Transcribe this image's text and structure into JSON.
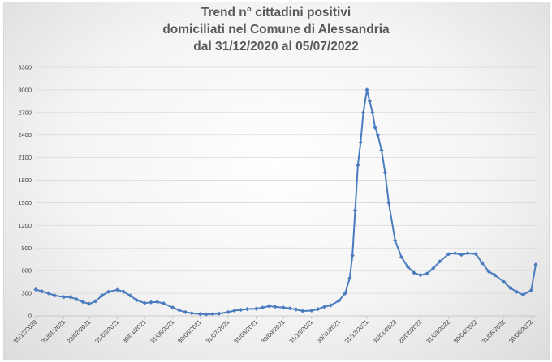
{
  "chart_data": {
    "type": "line",
    "title": [
      "Trend n° cittadini positivi",
      "domiciliati nel Comune di Alessandria",
      "dal 31/12/2020 al 05/07/2022"
    ],
    "xlabel": "",
    "ylabel": "",
    "ylim": [
      0,
      3300
    ],
    "yticks": [
      0,
      300,
      600,
      900,
      1200,
      1500,
      1800,
      2100,
      2400,
      2700,
      3000,
      3300
    ],
    "x_start": "31/12/2020",
    "x_end": "05/07/2022",
    "xtick_labels": [
      "31/12/2020",
      "31/01/2021",
      "28/02/2021",
      "31/03/2021",
      "30/04/2021",
      "31/05/2021",
      "30/06/2021",
      "31/07/2021",
      "31/08/2021",
      "30/09/2021",
      "31/10/2021",
      "30/11/2021",
      "31/12/2021",
      "31/01/2022",
      "28/02/2022",
      "31/03/2022",
      "30/04/2022",
      "31/05/2022",
      "30/06/2022"
    ],
    "grid": true,
    "legend": "none",
    "color": "#4a7cbf",
    "marker": "diamond",
    "series": [
      {
        "points": [
          [
            "31/12/2020",
            350
          ],
          [
            "07/01/2021",
            325
          ],
          [
            "14/01/2021",
            300
          ],
          [
            "21/01/2021",
            270
          ],
          [
            "31/01/2021",
            250
          ],
          [
            "07/02/2021",
            250
          ],
          [
            "14/02/2021",
            220
          ],
          [
            "21/02/2021",
            185
          ],
          [
            "28/02/2021",
            160
          ],
          [
            "07/03/2021",
            195
          ],
          [
            "14/03/2021",
            270
          ],
          [
            "21/03/2021",
            320
          ],
          [
            "31/03/2021",
            345
          ],
          [
            "07/04/2021",
            320
          ],
          [
            "14/04/2021",
            270
          ],
          [
            "21/04/2021",
            210
          ],
          [
            "30/04/2021",
            170
          ],
          [
            "07/05/2021",
            180
          ],
          [
            "14/05/2021",
            185
          ],
          [
            "21/05/2021",
            165
          ],
          [
            "31/05/2021",
            110
          ],
          [
            "07/06/2021",
            75
          ],
          [
            "14/06/2021",
            50
          ],
          [
            "21/06/2021",
            35
          ],
          [
            "30/06/2021",
            25
          ],
          [
            "07/07/2021",
            20
          ],
          [
            "14/07/2021",
            25
          ],
          [
            "21/07/2021",
            30
          ],
          [
            "31/07/2021",
            50
          ],
          [
            "07/08/2021",
            70
          ],
          [
            "14/08/2021",
            80
          ],
          [
            "21/08/2021",
            90
          ],
          [
            "31/08/2021",
            95
          ],
          [
            "07/09/2021",
            110
          ],
          [
            "14/09/2021",
            130
          ],
          [
            "21/09/2021",
            120
          ],
          [
            "30/09/2021",
            110
          ],
          [
            "07/10/2021",
            100
          ],
          [
            "14/10/2021",
            85
          ],
          [
            "21/10/2021",
            65
          ],
          [
            "31/10/2021",
            70
          ],
          [
            "07/11/2021",
            90
          ],
          [
            "14/11/2021",
            120
          ],
          [
            "21/11/2021",
            140
          ],
          [
            "30/11/2021",
            200
          ],
          [
            "07/12/2021",
            300
          ],
          [
            "12/12/2021",
            500
          ],
          [
            "15/12/2021",
            800
          ],
          [
            "18/12/2021",
            1400
          ],
          [
            "21/12/2021",
            2000
          ],
          [
            "24/12/2021",
            2300
          ],
          [
            "27/12/2021",
            2700
          ],
          [
            "31/12/2021",
            3000
          ],
          [
            "03/01/2022",
            2850
          ],
          [
            "06/01/2022",
            2700
          ],
          [
            "09/01/2022",
            2500
          ],
          [
            "12/01/2022",
            2400
          ],
          [
            "16/01/2022",
            2200
          ],
          [
            "20/01/2022",
            1900
          ],
          [
            "24/01/2022",
            1500
          ],
          [
            "31/01/2022",
            1000
          ],
          [
            "07/02/2022",
            780
          ],
          [
            "14/02/2022",
            650
          ],
          [
            "21/02/2022",
            570
          ],
          [
            "28/02/2022",
            540
          ],
          [
            "07/03/2022",
            560
          ],
          [
            "14/03/2022",
            630
          ],
          [
            "21/03/2022",
            720
          ],
          [
            "31/03/2022",
            820
          ],
          [
            "07/04/2022",
            830
          ],
          [
            "14/04/2022",
            810
          ],
          [
            "21/04/2022",
            830
          ],
          [
            "30/04/2022",
            820
          ],
          [
            "07/05/2022",
            700
          ],
          [
            "14/05/2022",
            590
          ],
          [
            "21/05/2022",
            540
          ],
          [
            "31/05/2022",
            450
          ],
          [
            "07/06/2022",
            370
          ],
          [
            "14/06/2022",
            320
          ],
          [
            "21/06/2022",
            280
          ],
          [
            "30/06/2022",
            340
          ],
          [
            "05/07/2022",
            680
          ]
        ]
      }
    ]
  }
}
